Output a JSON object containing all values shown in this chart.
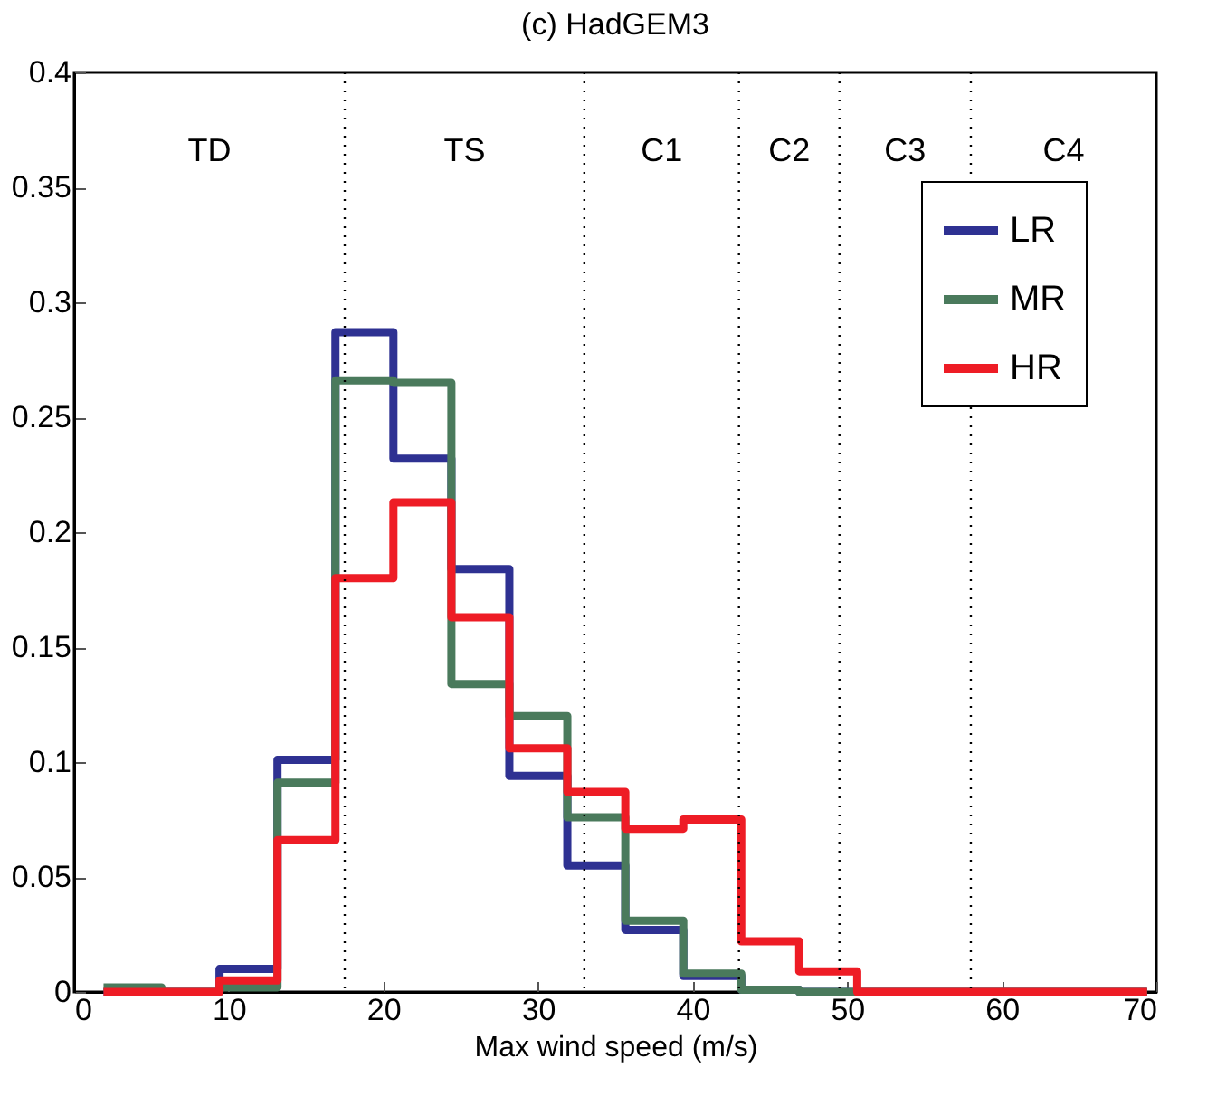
{
  "chart_data": {
    "type": "histogram",
    "title": "(c) HadGEM3",
    "xlabel": "Max wind speed (m/s)",
    "bins": [
      1.9,
      5.65,
      9.4,
      13.15,
      16.9,
      20.65,
      24.4,
      28.15,
      31.9,
      35.65,
      39.4,
      43.15,
      46.9,
      50.65,
      54.4,
      58.15,
      61.9,
      65.65,
      69.4
    ],
    "series": [
      {
        "name": "LR",
        "color": "#2e3192",
        "values": [
          0,
          0,
          0.01,
          0.101,
          0.287,
          0.232,
          0.184,
          0.094,
          0.055,
          0.027,
          0.007,
          0.001,
          0,
          0,
          0,
          0,
          0,
          0
        ]
      },
      {
        "name": "MR",
        "color": "#4a7a5c",
        "values": [
          0.002,
          0,
          0.002,
          0.091,
          0.266,
          0.265,
          0.134,
          0.12,
          0.076,
          0.031,
          0.008,
          0.001,
          0,
          0,
          0,
          0,
          0,
          0
        ]
      },
      {
        "name": "HR",
        "color": "#ee1c25",
        "values": [
          0,
          0,
          0.005,
          0.066,
          0.18,
          0.213,
          0.163,
          0.106,
          0.087,
          0.071,
          0.075,
          0.022,
          0.009,
          0,
          0,
          0,
          0,
          0
        ]
      }
    ],
    "xlim": [
      0,
      70
    ],
    "xticks": [
      0,
      10,
      20,
      30,
      40,
      50,
      60,
      70
    ],
    "ylim": [
      0,
      0.4
    ],
    "yticks": [
      0,
      0.05,
      0.1,
      0.15,
      0.2,
      0.25,
      0.3,
      0.35,
      0.4
    ],
    "ref_lines": [
      {
        "axis": "x",
        "value": 17.5,
        "line_style": "dotted",
        "color": "#000000"
      },
      {
        "axis": "x",
        "value": 33,
        "line_style": "dotted",
        "color": "#000000"
      },
      {
        "axis": "x",
        "value": 43,
        "line_style": "dotted",
        "color": "#000000"
      },
      {
        "axis": "x",
        "value": 49.5,
        "line_style": "dotted",
        "color": "#000000"
      },
      {
        "axis": "x",
        "value": 58,
        "line_style": "dotted",
        "color": "#000000"
      }
    ],
    "annotations": [
      "TD",
      "TS",
      "C1",
      "C2",
      "C3",
      "C4"
    ],
    "legend": "top right",
    "grid": false
  }
}
